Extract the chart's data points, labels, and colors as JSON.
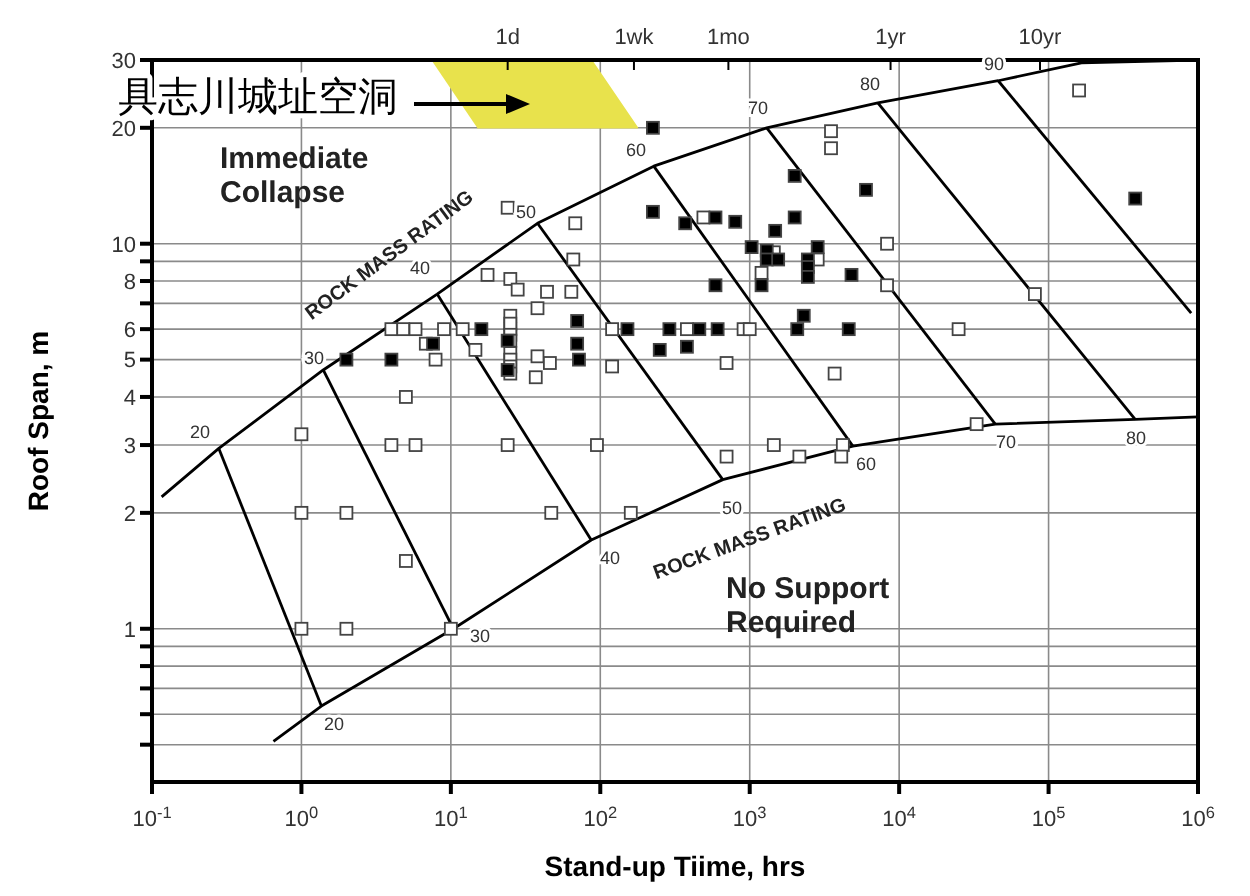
{
  "chart_data": {
    "type": "scatter",
    "xlabel": "Stand-up Tiime, hrs",
    "ylabel": "Roof Span, m",
    "log": "xy",
    "grid": true,
    "marker": "square",
    "xlim": [
      0.1,
      1000000
    ],
    "ylim": [
      0.4,
      30
    ],
    "xticks": [
      {
        "value": 0.1,
        "label": "10$^{-1}$"
      },
      {
        "value": 1,
        "label": "10$^{0}$"
      },
      {
        "value": 10,
        "label": "10$^{1}$"
      },
      {
        "value": 100,
        "label": "10$^{2}$"
      },
      {
        "value": 1000,
        "label": "10$^{3}$"
      },
      {
        "value": 10000,
        "label": "10$^{4}$"
      },
      {
        "value": 100000,
        "label": "10$^{5}$"
      },
      {
        "value": 1000000,
        "label": "10$^{6}$"
      }
    ],
    "ref_lines": [
      {
        "axis": "x",
        "value": 24,
        "label": "1d"
      },
      {
        "axis": "x",
        "value": 168,
        "label": "1wk"
      },
      {
        "axis": "x",
        "value": 720,
        "label": "1mo"
      },
      {
        "axis": "x",
        "value": 8760,
        "label": "1yr"
      },
      {
        "axis": "x",
        "value": 87600,
        "label": "10yr"
      }
    ],
    "yticks": [
      {
        "value": 0.5,
        "label": null
      },
      {
        "value": 0.6,
        "label": null
      },
      {
        "value": 0.7,
        "label": null
      },
      {
        "value": 0.8,
        "label": null
      },
      {
        "value": 0.9,
        "label": null
      },
      1,
      2,
      3,
      4,
      5,
      6,
      {
        "value": 7,
        "label": null
      },
      8,
      {
        "value": 9,
        "label": null
      },
      10,
      20,
      30
    ],
    "annotations": [
      "具志川城址空洞",
      "Immediate Collapse",
      "No Support Required",
      "ROCK MASS RATING",
      "ROCK MASS RATING",
      "20",
      "30",
      "40",
      "50",
      "60",
      "70",
      "80",
      "90",
      "20",
      "30",
      "40",
      "50",
      "60",
      "70",
      "80"
    ],
    "series": [
      {
        "type": "area",
        "color": "#e8e24c",
        "marker": "none",
        "x": [
          7.4,
          87,
          177,
          15
        ],
        "values": [
          30,
          30,
          20,
          20
        ]
      },
      {
        "type": "line",
        "color": "#000000",
        "marker": "none",
        "x": [
          0.116,
          0.28,
          1.4,
          8.1,
          38,
          228,
          1300,
          7200,
          46000,
          166000,
          1000000
        ],
        "values": [
          2.2,
          2.94,
          4.7,
          7.4,
          11.3,
          15.9,
          20,
          23.2,
          26.5,
          29.5,
          30
        ]
      },
      {
        "type": "line",
        "color": "#000000",
        "marker": "none",
        "x": [
          0.65,
          1.36,
          10.4,
          87,
          660,
          4900,
          44000,
          380000,
          1000000
        ],
        "values": [
          0.51,
          0.63,
          1.0,
          1.7,
          2.44,
          2.98,
          3.4,
          3.5,
          3.55
        ]
      },
      {
        "type": "line",
        "color": "#000000",
        "marker": "none",
        "x": [
          0.28,
          1.36
        ],
        "values": [
          2.94,
          0.63
        ]
      },
      {
        "type": "line",
        "color": "#000000",
        "marker": "none",
        "x": [
          1.4,
          10.4
        ],
        "values": [
          4.7,
          1.0
        ]
      },
      {
        "type": "line",
        "color": "#000000",
        "marker": "none",
        "x": [
          8.1,
          87
        ],
        "values": [
          7.4,
          1.7
        ]
      },
      {
        "type": "line",
        "color": "#000000",
        "marker": "none",
        "x": [
          38,
          660
        ],
        "values": [
          11.3,
          2.44
        ]
      },
      {
        "type": "line",
        "color": "#000000",
        "marker": "none",
        "x": [
          228,
          4900
        ],
        "values": [
          15.9,
          2.98
        ]
      },
      {
        "type": "line",
        "color": "#000000",
        "marker": "none",
        "x": [
          1300,
          44000
        ],
        "values": [
          20,
          3.4
        ]
      },
      {
        "type": "line",
        "color": "#000000",
        "marker": "none",
        "x": [
          7200,
          380000
        ],
        "values": [
          23.2,
          3.5
        ]
      },
      {
        "type": "line",
        "color": "#000000",
        "marker": "none",
        "x": [
          46000,
          900000
        ],
        "values": [
          26.5,
          6.6
        ]
      },
      {
        "type": "scatter",
        "color": "#ffffff",
        "x": [
          1,
          1,
          2,
          1,
          2,
          10,
          5,
          5,
          4,
          5.8,
          24,
          95,
          47,
          160,
          4,
          4.8,
          5.8,
          9,
          12,
          25,
          120,
          380,
          910,
          1000,
          25000,
          6.8,
          14.6,
          7.9,
          120,
          38,
          46,
          37,
          25,
          25,
          25,
          25,
          25,
          25,
          25,
          25,
          24,
          68,
          66,
          17.6,
          25,
          28,
          44,
          64,
          38,
          3500,
          3500,
          160000,
          490,
          1450,
          2850,
          1200,
          8300,
          8300,
          81000,
          700,
          3700,
          1450,
          4200,
          33000,
          700,
          2150,
          4100
        ],
        "values": [
          3.2,
          2,
          2,
          1,
          1,
          1,
          4,
          1.5,
          3,
          3,
          3,
          3,
          2,
          2,
          6,
          6,
          6,
          6,
          6,
          6,
          6,
          6,
          6,
          6,
          6,
          5.5,
          5.3,
          5,
          4.8,
          5.1,
          4.9,
          4.5,
          6.5,
          6.2,
          5.8,
          5.6,
          5.2,
          5,
          4.8,
          4.6,
          12.4,
          11.3,
          9.1,
          8.3,
          8.1,
          7.6,
          7.5,
          7.5,
          6.8,
          19.6,
          17.7,
          25,
          11.7,
          9.5,
          9.1,
          8.4,
          10,
          7.8,
          7.4,
          4.9,
          4.6,
          3,
          3,
          3.4,
          2.8,
          2.8,
          2.8
        ]
      },
      {
        "type": "scatter",
        "color": "#000000",
        "x": [
          2,
          4,
          72,
          16,
          152,
          290,
          460,
          610,
          2080,
          4600,
          7.6,
          24,
          70,
          250,
          380,
          24,
          70,
          225,
          2000,
          6000,
          380000,
          225,
          370,
          590,
          800,
          2000,
          1480,
          1030,
          1300,
          1300,
          1550,
          2850,
          2450,
          2450,
          2450,
          1200,
          590,
          4800,
          2300
        ],
        "values": [
          5,
          5,
          5,
          6,
          6,
          6,
          6,
          6,
          6,
          6,
          5.5,
          5.6,
          5.5,
          5.3,
          5.4,
          4.7,
          6.3,
          20,
          15,
          13.8,
          13.1,
          12.1,
          11.3,
          11.7,
          11.4,
          11.7,
          10.8,
          9.8,
          9.6,
          9.1,
          9.1,
          9.8,
          9.1,
          8.7,
          8.2,
          7.8,
          7.8,
          8.3,
          6.5
        ]
      }
    ]
  }
}
